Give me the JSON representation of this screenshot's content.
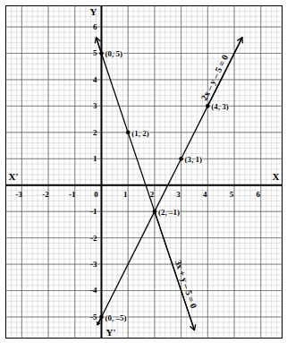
{
  "chart_data": {
    "type": "line",
    "xlabel": [
      "X'",
      "X"
    ],
    "ylabel": [
      "Y",
      "Y'"
    ],
    "xlim": [
      -3.6,
      6.8
    ],
    "ylim": [
      -5.8,
      6.8
    ],
    "xticks": [
      -3,
      -2,
      -1,
      0,
      1,
      2,
      3,
      4,
      5,
      6
    ],
    "yticks": [
      -5,
      -4,
      -3,
      -2,
      -1,
      0,
      1,
      2,
      3,
      4,
      5,
      6
    ],
    "grid": true,
    "series": [
      {
        "name": "2x – y – 5 = 0",
        "color": "#000000",
        "x": [
          -0.15,
          0,
          2,
          3,
          4,
          5.3
        ],
        "values": [
          -5.3,
          -5,
          -1,
          1,
          3,
          5.6
        ]
      },
      {
        "name": "3x + y – 5 = 0",
        "color": "#000000",
        "x": [
          -0.2,
          0,
          1,
          2,
          3.5
        ],
        "values": [
          5.6,
          5,
          2,
          -1,
          -5.5
        ]
      }
    ],
    "annotations": [
      {
        "text": "(0, 5)",
        "x": 0,
        "y": 5
      },
      {
        "text": "(1, 2)",
        "x": 1,
        "y": 2
      },
      {
        "text": "(2, –1)",
        "x": 2,
        "y": -1
      },
      {
        "text": "(0, –5)",
        "x": 0,
        "y": -5
      },
      {
        "text": "(3, 1)",
        "x": 3,
        "y": 1
      },
      {
        "text": "(4, 3)",
        "x": 4,
        "y": 3
      }
    ]
  }
}
